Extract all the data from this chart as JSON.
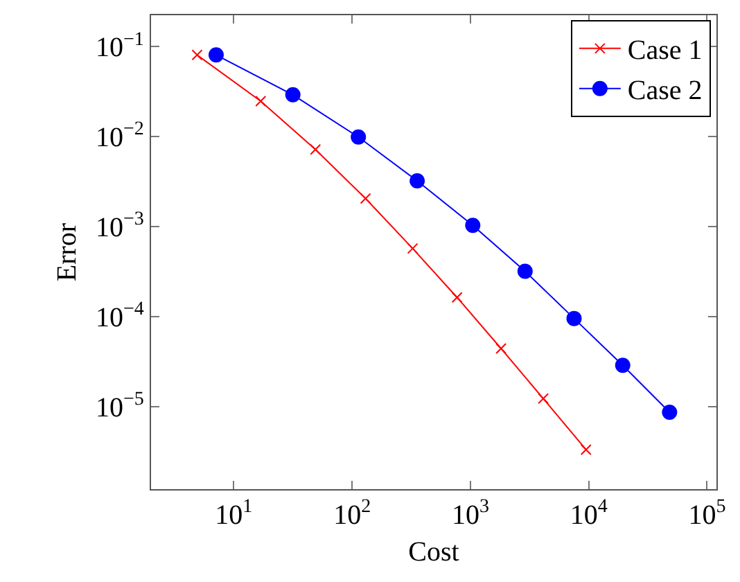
{
  "chart_data": {
    "type": "line",
    "xlabel": "Cost",
    "ylabel": "Error",
    "log": "xy",
    "grid": false,
    "legend": "top right",
    "xlim": [
      2,
      120000
    ],
    "ylim": [
      1.2e-06,
      0.224
    ],
    "xticks": [
      {
        "value": 10,
        "label": "10$^{1}$"
      },
      {
        "value": 100,
        "label": "10$^{2}$"
      },
      {
        "value": 1000,
        "label": "10$^{3}$"
      },
      {
        "value": 10000,
        "label": "10$^{4}$"
      },
      {
        "value": 100000,
        "label": "10$^{5}$"
      }
    ],
    "yticks": [
      {
        "value": 0.1,
        "label": "10$^{−1}$"
      },
      {
        "value": 0.01,
        "label": "10$^{−2}$"
      },
      {
        "value": 0.001,
        "label": "10$^{−3}$"
      },
      {
        "value": 0.0001,
        "label": "10$^{−4}$"
      },
      {
        "value": 1e-05,
        "label": "10$^{−5}$"
      }
    ],
    "series": [
      {
        "name": "Case 1",
        "color": "#ff0000",
        "marker": "cross",
        "x": [
          4.9,
          16.9,
          49,
          130,
          325,
          771,
          1815,
          4130,
          9480
        ],
        "values": [
          0.081,
          0.0248,
          0.0072,
          0.00205,
          0.00057,
          0.000163,
          4.4e-05,
          1.22e-05,
          3.3e-06
        ]
      },
      {
        "name": "Case 2",
        "color": "#0000ff",
        "marker": "circle",
        "x": [
          7.1,
          31.6,
          113,
          355,
          1047,
          2897,
          7516,
          19370,
          48200
        ],
        "values": [
          0.081,
          0.0292,
          0.0099,
          0.00322,
          0.00103,
          0.000318,
          9.5e-05,
          2.86e-05,
          8.6e-06
        ]
      }
    ]
  }
}
